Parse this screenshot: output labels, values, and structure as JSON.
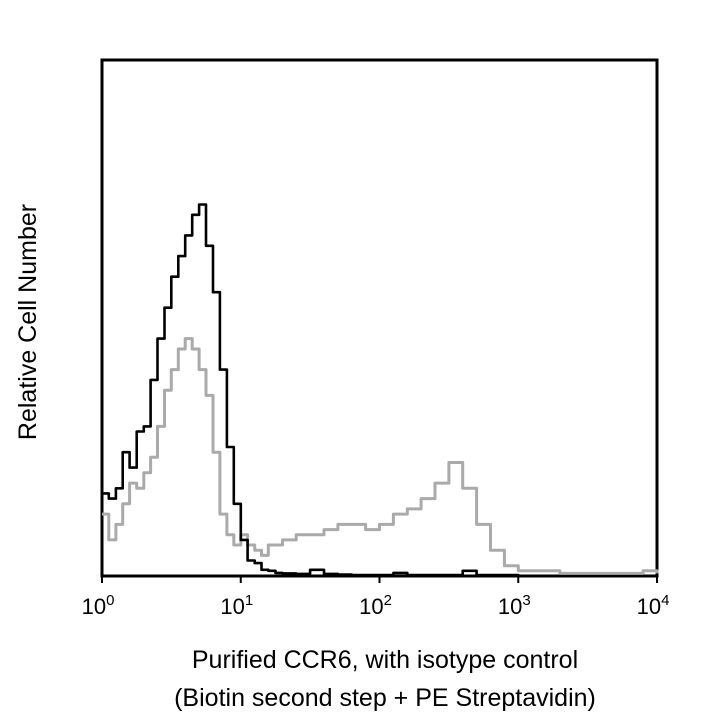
{
  "chart_data": {
    "type": "line",
    "title": "",
    "xlabel_lines": [
      "Purified CCR6, with isotype control",
      "(Biotin second step + PE Streptavidin)"
    ],
    "ylabel": "Relative Cell Number",
    "x_scale": "log",
    "xlim": [
      1,
      10000
    ],
    "ylim": [
      0,
      100
    ],
    "grid": false,
    "legend": "none",
    "x_ticks": [
      {
        "base": "10",
        "exp": "0",
        "value": 1
      },
      {
        "base": "10",
        "exp": "1",
        "value": 10
      },
      {
        "base": "10",
        "exp": "2",
        "value": 100
      },
      {
        "base": "10",
        "exp": "3",
        "value": 1000
      },
      {
        "base": "10",
        "exp": "4",
        "value": 10000
      }
    ],
    "series": [
      {
        "color": "#000000",
        "x": [
          1.0,
          1.12,
          1.26,
          1.41,
          1.58,
          1.78,
          2.0,
          2.24,
          2.51,
          2.82,
          3.16,
          3.55,
          3.98,
          4.47,
          5.01,
          5.62,
          6.31,
          7.08,
          7.94,
          8.91,
          10.0,
          11.2,
          12.6,
          14.1,
          15.8,
          17.8,
          20.0,
          25.1,
          31.6,
          39.8,
          50.1,
          63.1,
          79.4,
          100,
          125.9,
          158.5,
          199.5,
          251.2,
          316.2,
          398.1,
          501.2,
          631,
          794.3,
          1000
        ],
        "y": [
          16,
          15,
          17,
          24,
          21,
          28,
          29,
          38,
          46,
          52,
          58,
          62,
          66,
          70,
          72,
          64,
          55,
          40,
          25,
          14,
          7,
          3,
          2.5,
          1.2,
          1,
          0.6,
          0.5,
          0.4,
          1.2,
          0.4,
          0.3,
          0.2,
          0.2,
          0.2,
          0.6,
          0.2,
          0.2,
          0.2,
          0.2,
          1,
          0.2,
          0.2,
          0.2,
          0
        ]
      },
      {
        "color": "#aaaaaa",
        "x": [
          1.0,
          1.12,
          1.26,
          1.41,
          1.58,
          1.78,
          2.0,
          2.24,
          2.51,
          2.82,
          3.16,
          3.55,
          3.98,
          4.47,
          5.01,
          5.62,
          6.31,
          7.08,
          7.94,
          8.91,
          10.0,
          11.2,
          12.6,
          14.1,
          15.8,
          17.8,
          20.0,
          25.1,
          31.6,
          39.8,
          50.1,
          63.1,
          79.4,
          100,
          125.9,
          158.5,
          199.5,
          251.2,
          316.2,
          398.1,
          501.2,
          631,
          794.3,
          1000,
          1995,
          5012,
          7943,
          10000
        ],
        "y": [
          12,
          7,
          10,
          14,
          18,
          17,
          20,
          23,
          29,
          36,
          40,
          44,
          46,
          44,
          40,
          35,
          24,
          12,
          8,
          6,
          8,
          6,
          5,
          4,
          6,
          6,
          7,
          8,
          8,
          9,
          10,
          10,
          9,
          10,
          12,
          13,
          15,
          18,
          22,
          17,
          10,
          5,
          2,
          1,
          0.5,
          0.5,
          1,
          0.5
        ]
      }
    ]
  }
}
